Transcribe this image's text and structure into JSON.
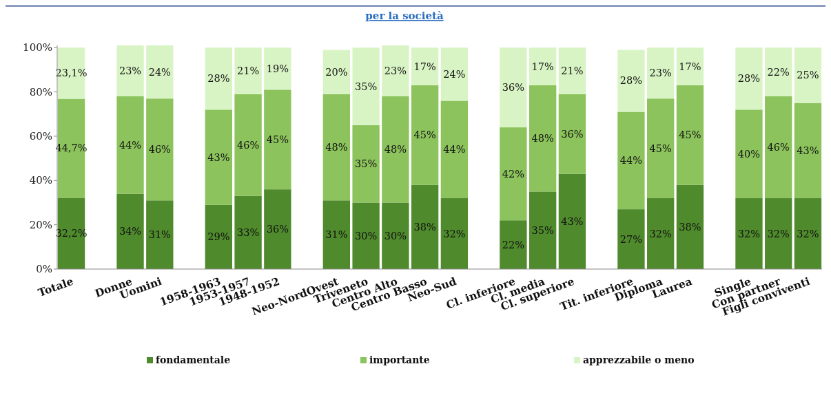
{
  "chart_data": {
    "type": "bar",
    "title": "per la società",
    "stacked": true,
    "categories": [
      "Totale",
      null,
      "Donne",
      "Uomini",
      null,
      "1958-1963",
      "1953-1957",
      "1948-1952",
      null,
      "Neo-NordOvest",
      "Triveneto",
      "Centro Alto",
      "Centro Basso",
      "Neo-Sud",
      null,
      "Cl. inferiore",
      "Cl. media",
      "Cl. superiore",
      null,
      "Tit. inferiore",
      "Diploma",
      "Laurea",
      null,
      "Single",
      "Con partner",
      "Figli conviventi"
    ],
    "series": [
      {
        "name": "fondamentale",
        "color": "#4f8a2c",
        "values": [
          32.2,
          null,
          34,
          31,
          null,
          29,
          33,
          36,
          null,
          31,
          30,
          30,
          38,
          32,
          null,
          22,
          35,
          43,
          null,
          27,
          32,
          38,
          null,
          32,
          32,
          32
        ],
        "value_labels": [
          "32,2%",
          null,
          "34%",
          "31%",
          null,
          "29%",
          "33%",
          "36%",
          null,
          "31%",
          "30%",
          "30%",
          "38%",
          "32%",
          null,
          "22%",
          "35%",
          "43%",
          null,
          "27%",
          "32%",
          "38%",
          null,
          "32%",
          "32%",
          "32%"
        ]
      },
      {
        "name": "importante",
        "color": "#8cc35c",
        "values": [
          44.7,
          null,
          44,
          46,
          null,
          43,
          46,
          45,
          null,
          48,
          35,
          48,
          45,
          44,
          null,
          42,
          48,
          36,
          null,
          44,
          45,
          45,
          null,
          40,
          46,
          43
        ],
        "value_labels": [
          "44,7%",
          null,
          "44%",
          "46%",
          null,
          "43%",
          "46%",
          "45%",
          null,
          "48%",
          "35%",
          "48%",
          "45%",
          "44%",
          null,
          "42%",
          "48%",
          "36%",
          null,
          "44%",
          "45%",
          "45%",
          null,
          "40%",
          "46%",
          "43%"
        ]
      },
      {
        "name": "apprezzabile o meno",
        "color": "#d8f4c4",
        "values": [
          23.1,
          null,
          23,
          24,
          null,
          28,
          21,
          19,
          null,
          20,
          35,
          23,
          17,
          24,
          null,
          36,
          17,
          21,
          null,
          28,
          23,
          17,
          null,
          28,
          22,
          25
        ],
        "value_labels": [
          "23,1%",
          null,
          "23%",
          "24%",
          null,
          "28%",
          "21%",
          "19%",
          null,
          "20%",
          "35%",
          "23%",
          "17%",
          "24%",
          null,
          "36%",
          "17%",
          "21%",
          null,
          "28%",
          "23%",
          "17%",
          null,
          "28%",
          "22%",
          "25%"
        ]
      }
    ],
    "ylim": [
      0,
      101
    ],
    "yticks": [
      {
        "value": 0,
        "label": "0%"
      },
      {
        "value": 20,
        "label": "20%"
      },
      {
        "value": 40,
        "label": "40%"
      },
      {
        "value": 60,
        "label": "60%"
      },
      {
        "value": 80,
        "label": "80%"
      },
      {
        "value": 100,
        "label": "100%"
      }
    ],
    "legend": "bottom"
  }
}
